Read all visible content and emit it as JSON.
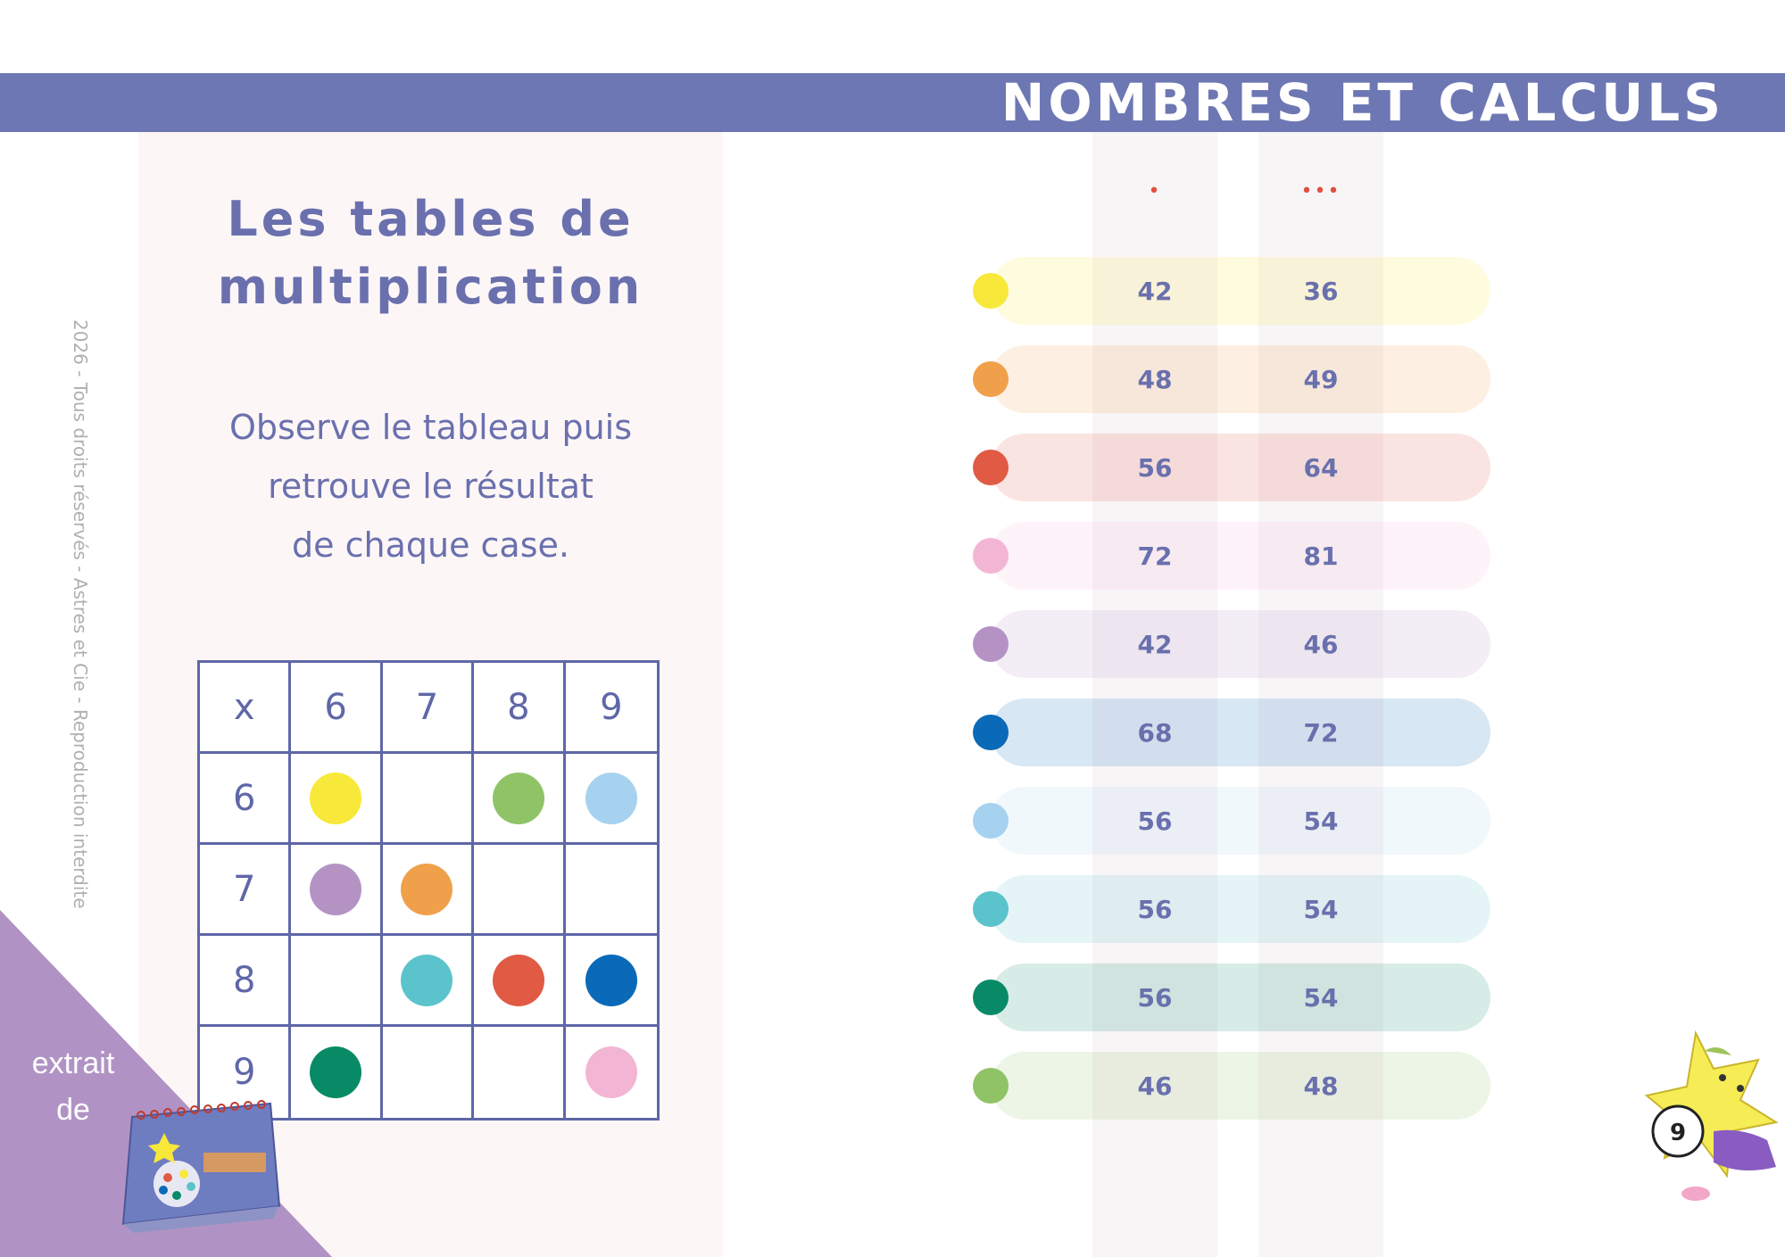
{
  "header": {
    "title": "NOMBRES ET CALCULS"
  },
  "left": {
    "title_line1": "Les tables de",
    "title_line2": "multiplication",
    "instruction_line1": "Observe le tableau puis",
    "instruction_line2": "retrouve le résultat",
    "instruction_line3": "de chaque case.",
    "copyright": "2026 - Tous droits réservés - Astres et Cie - Reproduction interdite"
  },
  "grid": {
    "corner": "x",
    "col_headers": [
      "6",
      "7",
      "8",
      "9"
    ],
    "row_headers": [
      "6",
      "7",
      "8",
      "9"
    ]
  },
  "colors": {
    "yellow": "#f8e83a",
    "orange": "#f0a04a",
    "red": "#e05a44",
    "pink": "#f2b6d4",
    "purple": "#b493c4",
    "blue": "#0a6ab8",
    "light_blue": "#a6d2ef",
    "teal": "#5bc3cc",
    "green": "#088a66",
    "light_green": "#8fc366"
  },
  "answers": {
    "col1_symbol": "•",
    "col2_symbol": "•••",
    "rows": [
      {
        "color": "yellow",
        "a": "42",
        "b": "36"
      },
      {
        "color": "orange",
        "a": "48",
        "b": "49"
      },
      {
        "color": "red",
        "a": "56",
        "b": "64"
      },
      {
        "color": "pink",
        "a": "72",
        "b": "81"
      },
      {
        "color": "purple",
        "a": "42",
        "b": "46"
      },
      {
        "color": "blue",
        "a": "68",
        "b": "72"
      },
      {
        "color": "light_blue",
        "a": "56",
        "b": "54"
      },
      {
        "color": "teal",
        "a": "56",
        "b": "54"
      },
      {
        "color": "green",
        "a": "56",
        "b": "54"
      },
      {
        "color": "light_green",
        "a": "46",
        "b": "48"
      }
    ]
  },
  "badge": {
    "line1": "extrait",
    "line2": "de"
  },
  "page_number": "9"
}
